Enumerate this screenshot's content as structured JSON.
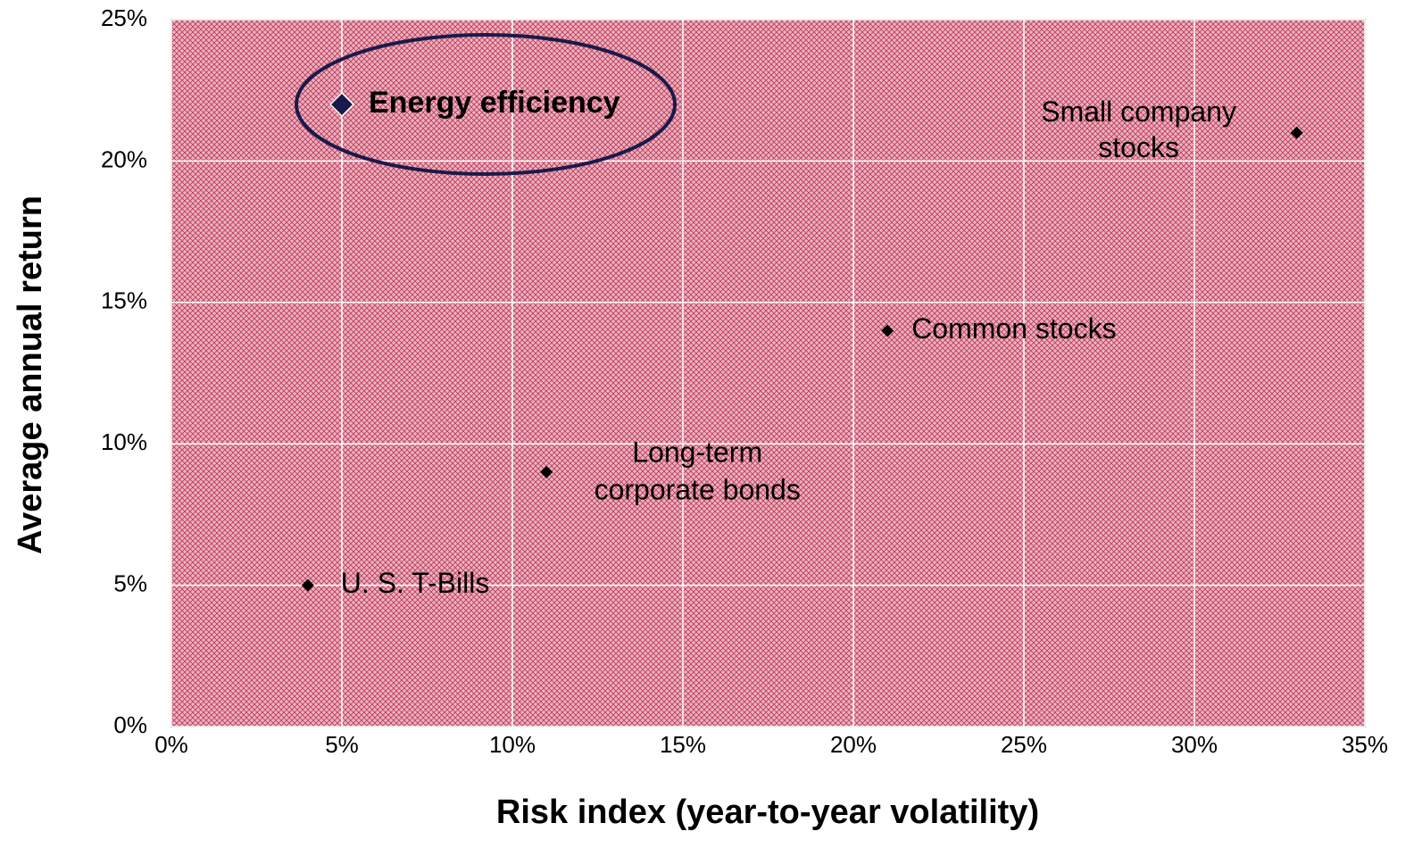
{
  "chart_data": {
    "type": "scatter",
    "xlabel": "Risk index (year-to-year volatility)",
    "ylabel": "Average annual return",
    "series": [
      {
        "color": "#000000",
        "x": [
          5,
          33,
          21,
          11,
          4
        ],
        "values": [
          22,
          21,
          14,
          9,
          5
        ]
      }
    ],
    "point_labels": [
      [
        "Energy efficiency"
      ],
      [
        "Small company",
        "stocks"
      ],
      [
        "Common stocks"
      ],
      [
        "Long-term",
        "corporate bonds"
      ],
      [
        "U. S. T-Bills"
      ]
    ],
    "xlim": [
      0,
      35
    ],
    "xticks": [
      {
        "value": 0,
        "label": "0%"
      },
      {
        "value": 5,
        "label": "5%"
      },
      {
        "value": 10,
        "label": "10%"
      },
      {
        "value": 15,
        "label": "15%"
      },
      {
        "value": 20,
        "label": "20%"
      },
      {
        "value": 25,
        "label": "25%"
      },
      {
        "value": 30,
        "label": "30%"
      },
      {
        "value": 35,
        "label": "35%"
      }
    ],
    "ylim": [
      0,
      25
    ],
    "yticks": [
      {
        "value": 0,
        "label": "0%"
      },
      {
        "value": 5,
        "label": "5%"
      },
      {
        "value": 10,
        "label": "10%"
      },
      {
        "value": 15,
        "label": "15%"
      },
      {
        "value": 20,
        "label": "20%"
      },
      {
        "value": 25,
        "label": "25%"
      }
    ],
    "grid": true
  }
}
